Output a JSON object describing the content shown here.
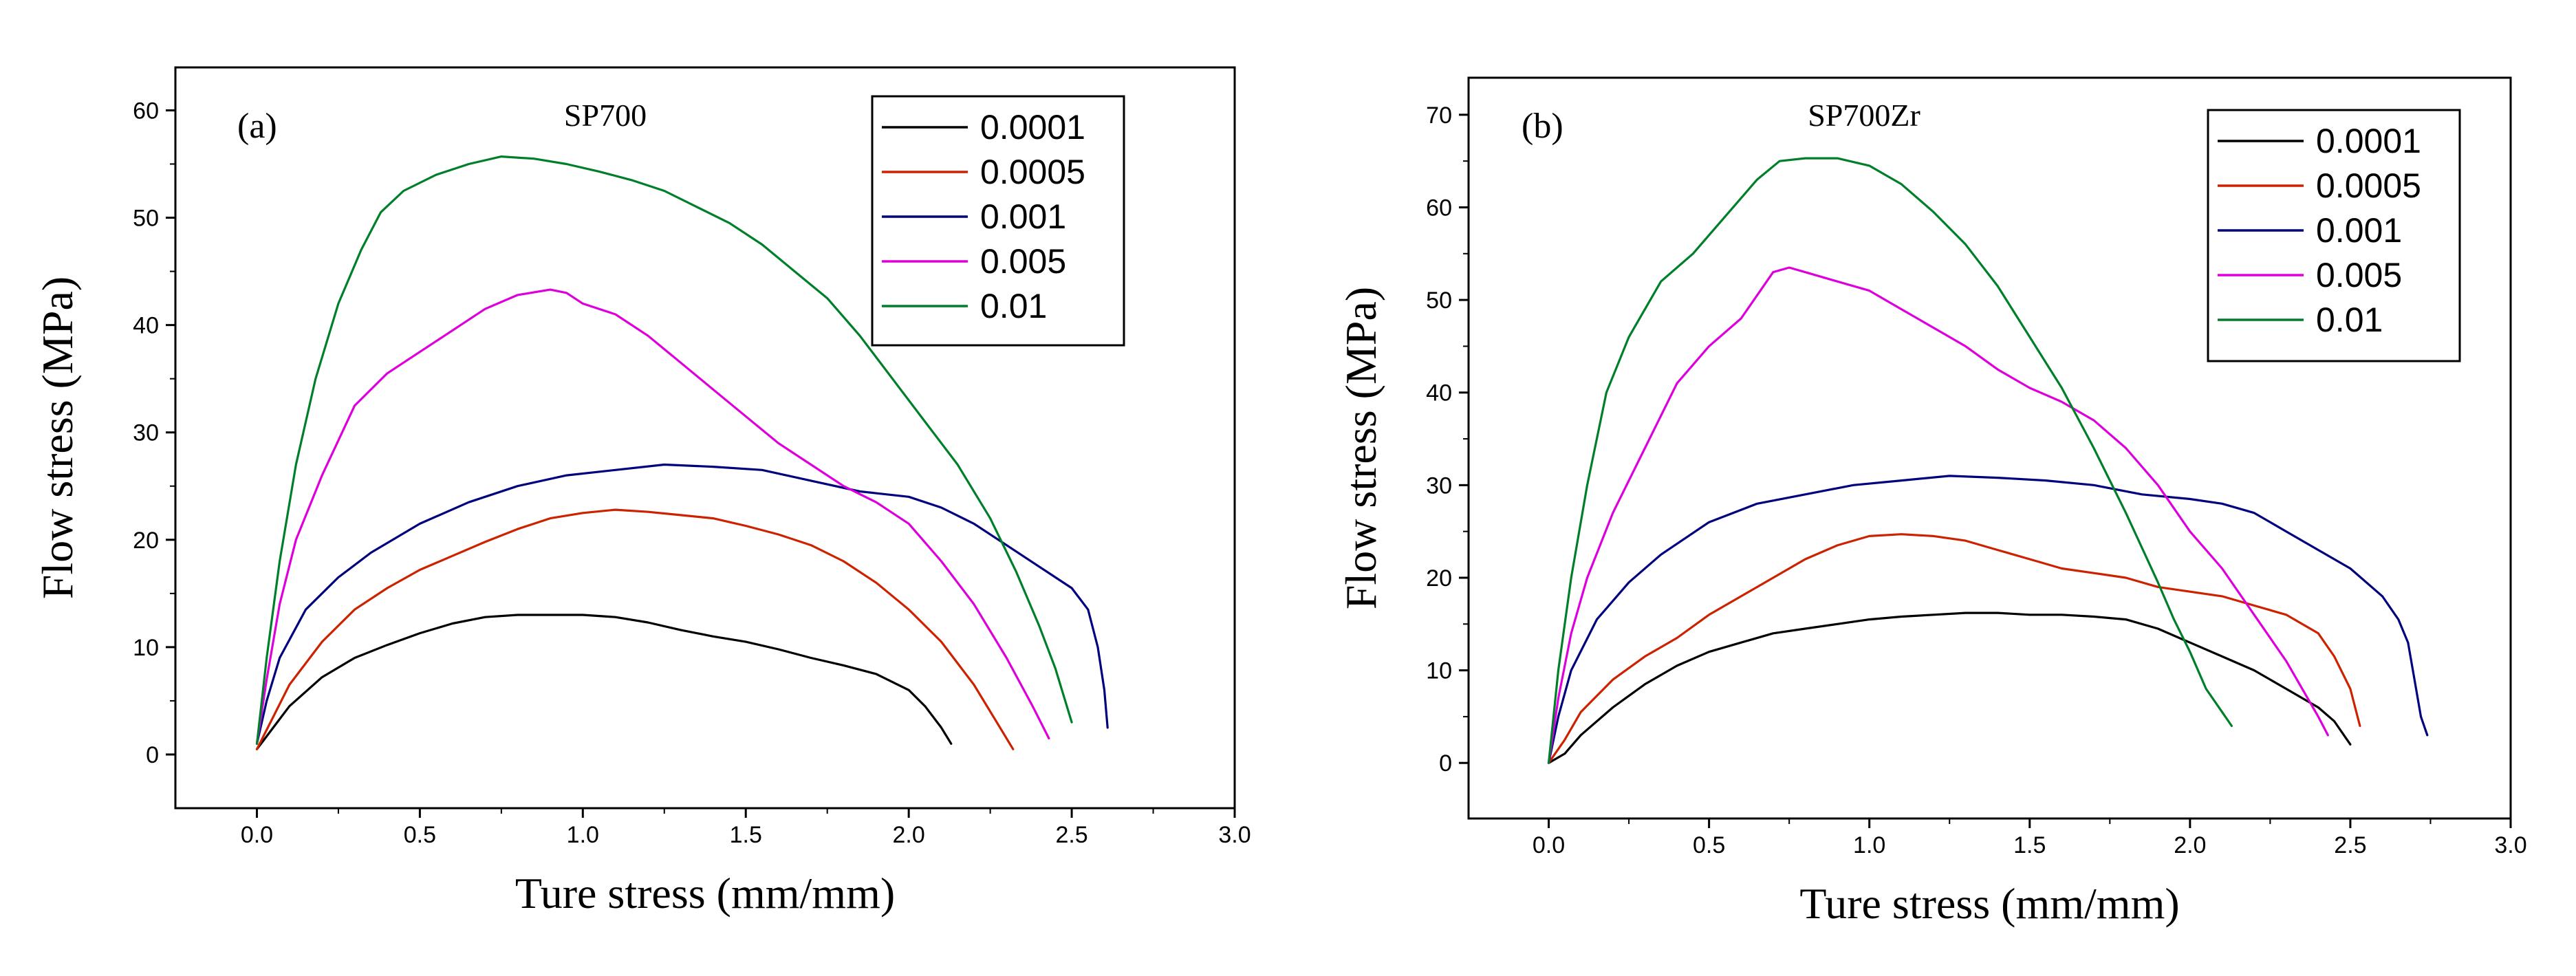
{
  "chart_data": [
    {
      "type": "line",
      "panel_label": "(a)",
      "title": "SP700",
      "xlabel": "Ture stress (mm/mm)",
      "ylabel": "Flow stress (MPa)",
      "xlim": [
        -0.25,
        3.0
      ],
      "ylim": [
        -5,
        64
      ],
      "xticks": [
        "0.0",
        "0.5",
        "1.0",
        "1.5",
        "2.0",
        "2.5",
        "3.0"
      ],
      "yticks": [
        "0",
        "10",
        "20",
        "30",
        "40",
        "50",
        "60"
      ],
      "legend_position": "top-right",
      "series": [
        {
          "name": "0.0001",
          "color": "#000000",
          "x": [
            0.0,
            0.05,
            0.1,
            0.2,
            0.3,
            0.4,
            0.5,
            0.6,
            0.7,
            0.8,
            0.9,
            1.0,
            1.1,
            1.2,
            1.3,
            1.4,
            1.5,
            1.6,
            1.7,
            1.8,
            1.9,
            2.0,
            2.05,
            2.1,
            2.13
          ],
          "y": [
            0.5,
            2.5,
            4.5,
            7.2,
            9.0,
            10.2,
            11.3,
            12.2,
            12.8,
            13.0,
            13.0,
            13.0,
            12.8,
            12.3,
            11.6,
            11.0,
            10.5,
            9.8,
            9.0,
            8.3,
            7.5,
            6.0,
            4.5,
            2.5,
            1.0
          ]
        },
        {
          "name": "0.0005",
          "color": "#cc2200",
          "x": [
            0.0,
            0.05,
            0.1,
            0.2,
            0.3,
            0.4,
            0.5,
            0.6,
            0.7,
            0.8,
            0.9,
            1.0,
            1.1,
            1.2,
            1.3,
            1.4,
            1.5,
            1.6,
            1.7,
            1.8,
            1.9,
            2.0,
            2.1,
            2.2,
            2.27,
            2.32
          ],
          "y": [
            0.5,
            3.5,
            6.5,
            10.5,
            13.5,
            15.5,
            17.2,
            18.5,
            19.8,
            21.0,
            22.0,
            22.5,
            22.8,
            22.6,
            22.3,
            22.0,
            21.3,
            20.5,
            19.5,
            18.0,
            16.0,
            13.5,
            10.5,
            6.5,
            3.0,
            0.5
          ]
        },
        {
          "name": "0.001",
          "color": "#00007f",
          "x": [
            0.0,
            0.03,
            0.07,
            0.15,
            0.25,
            0.35,
            0.5,
            0.65,
            0.8,
            0.95,
            1.1,
            1.25,
            1.4,
            1.55,
            1.7,
            1.85,
            2.0,
            2.1,
            2.2,
            2.3,
            2.4,
            2.5,
            2.55,
            2.58,
            2.6,
            2.61
          ],
          "y": [
            1.0,
            5.0,
            9.0,
            13.5,
            16.5,
            18.8,
            21.5,
            23.5,
            25.0,
            26.0,
            26.5,
            27.0,
            26.8,
            26.5,
            25.5,
            24.5,
            24.0,
            23.0,
            21.5,
            19.5,
            17.5,
            15.5,
            13.5,
            10.0,
            6.0,
            2.5
          ]
        },
        {
          "name": "0.005",
          "color": "#dd00dd",
          "x": [
            0.0,
            0.03,
            0.07,
            0.12,
            0.2,
            0.3,
            0.4,
            0.5,
            0.6,
            0.7,
            0.8,
            0.9,
            0.95,
            1.0,
            1.1,
            1.2,
            1.3,
            1.4,
            1.5,
            1.6,
            1.7,
            1.8,
            1.9,
            2.0,
            2.1,
            2.2,
            2.3,
            2.38,
            2.43
          ],
          "y": [
            1.0,
            7.0,
            14.0,
            20.0,
            26.0,
            32.5,
            35.5,
            37.5,
            39.5,
            41.5,
            42.8,
            43.3,
            43.0,
            42.0,
            41.0,
            39.0,
            36.5,
            34.0,
            31.5,
            29.0,
            27.0,
            25.0,
            23.5,
            21.5,
            18.0,
            14.0,
            9.0,
            4.5,
            1.5
          ]
        },
        {
          "name": "0.01",
          "color": "#007f2a",
          "x": [
            0.0,
            0.03,
            0.07,
            0.12,
            0.18,
            0.25,
            0.32,
            0.38,
            0.45,
            0.55,
            0.65,
            0.75,
            0.85,
            0.95,
            1.05,
            1.15,
            1.25,
            1.35,
            1.45,
            1.55,
            1.65,
            1.75,
            1.85,
            1.95,
            2.05,
            2.15,
            2.25,
            2.33,
            2.4,
            2.45,
            2.48,
            2.5
          ],
          "y": [
            1.0,
            9.0,
            18.0,
            27.0,
            35.0,
            42.0,
            47.0,
            50.5,
            52.5,
            54.0,
            55.0,
            55.7,
            55.5,
            55.0,
            54.3,
            53.5,
            52.5,
            51.0,
            49.5,
            47.5,
            45.0,
            42.5,
            39.0,
            35.0,
            31.0,
            27.0,
            22.0,
            17.0,
            12.0,
            8.0,
            5.0,
            3.0
          ]
        }
      ]
    },
    {
      "type": "line",
      "panel_label": "(b)",
      "title": "SP700Zr",
      "xlabel": "Ture stress (mm/mm)",
      "ylabel": "Flow stress (MPa)",
      "xlim": [
        -0.25,
        3.0
      ],
      "ylim": [
        -6,
        74
      ],
      "xticks": [
        "0.0",
        "0.5",
        "1.0",
        "1.5",
        "2.0",
        "2.5",
        "3.0"
      ],
      "yticks": [
        "0",
        "10",
        "20",
        "30",
        "40",
        "50",
        "60",
        "70"
      ],
      "legend_position": "top-right",
      "series": [
        {
          "name": "0.0001",
          "color": "#000000",
          "x": [
            0.0,
            0.05,
            0.1,
            0.2,
            0.3,
            0.4,
            0.5,
            0.6,
            0.7,
            0.8,
            0.9,
            1.0,
            1.1,
            1.2,
            1.3,
            1.4,
            1.5,
            1.6,
            1.7,
            1.8,
            1.9,
            2.0,
            2.1,
            2.2,
            2.3,
            2.4,
            2.45,
            2.5
          ],
          "y": [
            0.0,
            1.0,
            3.0,
            6.0,
            8.5,
            10.5,
            12.0,
            13.0,
            14.0,
            14.5,
            15.0,
            15.5,
            15.8,
            16.0,
            16.2,
            16.2,
            16.0,
            16.0,
            15.8,
            15.5,
            14.5,
            13.0,
            11.5,
            10.0,
            8.0,
            6.0,
            4.5,
            2.0
          ]
        },
        {
          "name": "0.0005",
          "color": "#cc2200",
          "x": [
            0.0,
            0.05,
            0.1,
            0.2,
            0.3,
            0.4,
            0.5,
            0.6,
            0.7,
            0.8,
            0.9,
            1.0,
            1.1,
            1.2,
            1.3,
            1.4,
            1.5,
            1.6,
            1.7,
            1.8,
            1.9,
            2.0,
            2.1,
            2.2,
            2.3,
            2.4,
            2.45,
            2.5,
            2.53
          ],
          "y": [
            0.0,
            2.5,
            5.5,
            9.0,
            11.5,
            13.5,
            16.0,
            18.0,
            20.0,
            22.0,
            23.5,
            24.5,
            24.7,
            24.5,
            24.0,
            23.0,
            22.0,
            21.0,
            20.5,
            20.0,
            19.0,
            18.5,
            18.0,
            17.0,
            16.0,
            14.0,
            11.5,
            8.0,
            4.0
          ]
        },
        {
          "name": "0.001",
          "color": "#00007f",
          "x": [
            0.0,
            0.03,
            0.07,
            0.15,
            0.25,
            0.35,
            0.5,
            0.65,
            0.8,
            0.95,
            1.1,
            1.25,
            1.4,
            1.55,
            1.7,
            1.85,
            2.0,
            2.1,
            2.2,
            2.3,
            2.4,
            2.5,
            2.6,
            2.65,
            2.68,
            2.7,
            2.72,
            2.74
          ],
          "y": [
            0.0,
            5.0,
            10.0,
            15.5,
            19.5,
            22.5,
            26.0,
            28.0,
            29.0,
            30.0,
            30.5,
            31.0,
            30.8,
            30.5,
            30.0,
            29.0,
            28.5,
            28.0,
            27.0,
            25.0,
            23.0,
            21.0,
            18.0,
            15.5,
            13.0,
            9.0,
            5.0,
            3.0
          ]
        },
        {
          "name": "0.005",
          "color": "#dd00dd",
          "x": [
            0.0,
            0.03,
            0.07,
            0.12,
            0.2,
            0.3,
            0.4,
            0.5,
            0.6,
            0.7,
            0.75,
            0.8,
            0.9,
            1.0,
            1.1,
            1.2,
            1.3,
            1.4,
            1.5,
            1.6,
            1.7,
            1.8,
            1.9,
            2.0,
            2.1,
            2.2,
            2.3,
            2.4,
            2.43
          ],
          "y": [
            0.0,
            7.0,
            14.0,
            20.0,
            27.0,
            34.0,
            41.0,
            45.0,
            48.0,
            53.0,
            53.5,
            53.0,
            52.0,
            51.0,
            49.0,
            47.0,
            45.0,
            42.5,
            40.5,
            39.0,
            37.0,
            34.0,
            30.0,
            25.0,
            21.0,
            16.0,
            11.0,
            5.0,
            3.0
          ]
        },
        {
          "name": "0.01",
          "color": "#007f2a",
          "x": [
            0.0,
            0.03,
            0.07,
            0.12,
            0.18,
            0.25,
            0.35,
            0.45,
            0.55,
            0.65,
            0.72,
            0.8,
            0.9,
            1.0,
            1.1,
            1.2,
            1.3,
            1.4,
            1.5,
            1.6,
            1.7,
            1.8,
            1.9,
            1.95,
            2.0,
            2.05,
            2.1,
            2.13
          ],
          "y": [
            0.0,
            10.0,
            20.0,
            30.0,
            40.0,
            46.0,
            52.0,
            55.0,
            59.0,
            63.0,
            65.0,
            65.3,
            65.3,
            64.5,
            62.5,
            59.5,
            56.0,
            51.5,
            46.0,
            40.5,
            34.0,
            27.0,
            19.5,
            15.5,
            12.0,
            8.0,
            5.5,
            4.0
          ]
        }
      ]
    }
  ]
}
